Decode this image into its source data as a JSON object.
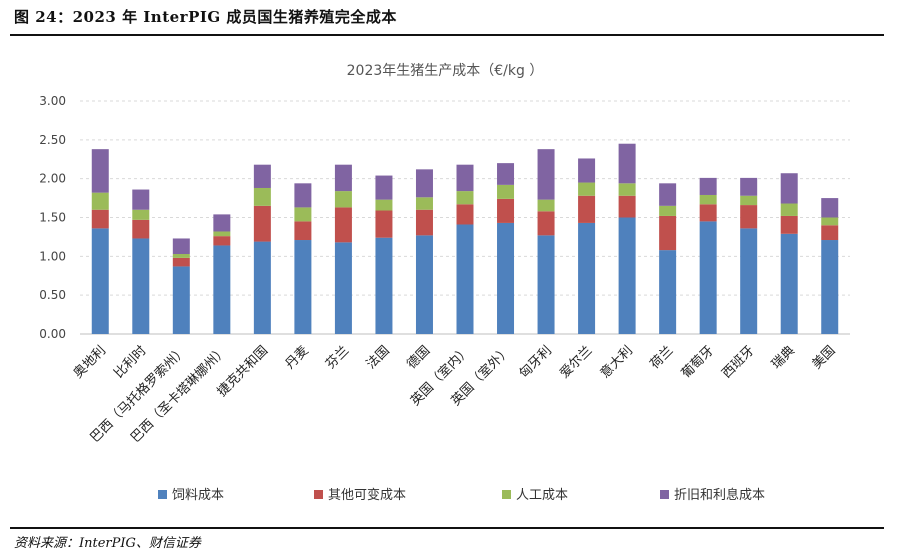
{
  "figure_title": "图 24：2023 年 InterPIG 成员国生猪养殖完全成本",
  "source": "资料来源：InterPIG、财信证券",
  "colors": {
    "feed": "#4F81BD",
    "other_variable": "#C0504D",
    "labor": "#9BBB59",
    "depreciation_interest": "#8064A2"
  },
  "chart_data": {
    "type": "bar",
    "stacked": true,
    "title": "2023年生猪生产成本（€/kg ）",
    "categories": [
      "奥地利",
      "比利时",
      "巴西（马托格罗索州）",
      "巴西（圣卡塔琳娜州）",
      "捷克共和国",
      "丹麦",
      "芬兰",
      "法国",
      "德国",
      "英国（室内）",
      "英国（室外）",
      "匈牙利",
      "爱尔兰",
      "意大利",
      "荷兰",
      "葡萄牙",
      "西班牙",
      "瑞典",
      "美国"
    ],
    "series": [
      {
        "name": "饲料成本",
        "values": [
          1.36,
          1.23,
          0.87,
          1.14,
          1.19,
          1.21,
          1.18,
          1.24,
          1.27,
          1.41,
          1.43,
          1.27,
          1.43,
          1.5,
          1.08,
          1.45,
          1.36,
          1.29,
          1.21
        ]
      },
      {
        "name": "其他可变成本",
        "values": [
          0.24,
          0.24,
          0.11,
          0.12,
          0.46,
          0.24,
          0.45,
          0.35,
          0.33,
          0.26,
          0.31,
          0.31,
          0.35,
          0.28,
          0.44,
          0.22,
          0.3,
          0.23,
          0.19
        ]
      },
      {
        "name": "人工成本",
        "values": [
          0.22,
          0.13,
          0.05,
          0.06,
          0.23,
          0.18,
          0.21,
          0.14,
          0.16,
          0.17,
          0.18,
          0.15,
          0.17,
          0.16,
          0.13,
          0.12,
          0.12,
          0.16,
          0.1
        ]
      },
      {
        "name": "折旧和利息成本",
        "values": [
          0.56,
          0.26,
          0.2,
          0.22,
          0.3,
          0.31,
          0.34,
          0.31,
          0.36,
          0.34,
          0.28,
          0.65,
          0.31,
          0.51,
          0.29,
          0.22,
          0.23,
          0.39,
          0.25
        ]
      }
    ],
    "ylim": [
      0,
      3.0
    ],
    "yticks": [
      "0.00",
      "0.50",
      "1.00",
      "1.50",
      "2.00",
      "2.50",
      "3.00"
    ],
    "grid": true,
    "legend": "bottom"
  }
}
